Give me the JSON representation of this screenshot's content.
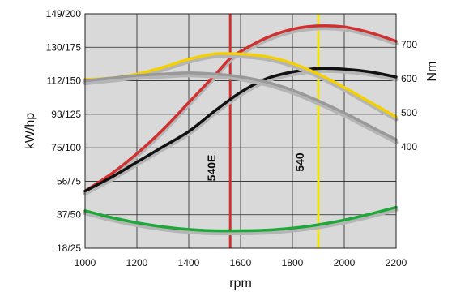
{
  "chart_data": {
    "type": "line",
    "xlabel": "rpm",
    "ylabel_left": "kW/hp",
    "ylabel_right": "Nm",
    "x_ticks": [
      1000,
      1200,
      1400,
      1600,
      1800,
      2000,
      2200
    ],
    "xlim": [
      1000,
      2200
    ],
    "left_ticks": [
      "149/200",
      "130/175",
      "112/150",
      "93/125",
      "75/100",
      "56/75",
      "37/50",
      "18/25"
    ],
    "right_ticks": [
      700,
      600,
      500,
      400
    ],
    "grid": true,
    "markers": [
      {
        "label": "540E",
        "x": 1560,
        "color": "#d03030"
      },
      {
        "label": "540",
        "x": 1900,
        "color": "#f5e600"
      }
    ],
    "series": [
      {
        "axis": "right",
        "unit": "Nm",
        "color": "#d03030",
        "x": [
          1000,
          1100,
          1200,
          1300,
          1400,
          1500,
          1560,
          1600,
          1700,
          1800,
          1900,
          2000,
          2100,
          2200
        ],
        "values": [
          270,
          320,
          380,
          450,
          530,
          610,
          660,
          680,
          720,
          745,
          755,
          752,
          735,
          710
        ]
      },
      {
        "axis": "right",
        "unit": "Nm",
        "color": "#111111",
        "x": [
          1000,
          1100,
          1200,
          1300,
          1400,
          1500,
          1600,
          1700,
          1800,
          1900,
          2000,
          2100,
          2200
        ],
        "values": [
          270,
          310,
          355,
          400,
          445,
          505,
          560,
          600,
          620,
          630,
          628,
          620,
          605
        ]
      },
      {
        "axis": "left",
        "unit": "hp",
        "color": "#f5d000",
        "x": [
          1000,
          1100,
          1200,
          1300,
          1400,
          1500,
          1600,
          1700,
          1800,
          1900,
          2000,
          2100,
          2200
        ],
        "values": [
          151,
          152,
          155,
          160,
          166,
          170,
          170,
          168,
          163,
          155,
          145,
          134,
          123
        ]
      },
      {
        "axis": "left",
        "unit": "hp",
        "color": "#999999",
        "x": [
          1000,
          1100,
          1200,
          1300,
          1400,
          1500,
          1600,
          1700,
          1800,
          1900,
          2000,
          2100,
          2200
        ],
        "values": [
          150,
          152,
          154,
          155,
          156,
          155,
          153,
          149,
          143,
          135,
          126,
          116,
          106
        ]
      },
      {
        "axis": "left",
        "unit": "hp",
        "color": "#1fa83a",
        "x": [
          1000,
          1100,
          1200,
          1300,
          1400,
          1500,
          1600,
          1700,
          1800,
          1900,
          2000,
          2100,
          2200
        ],
        "values": [
          53,
          48,
          44,
          41,
          39,
          38,
          38,
          38.5,
          40,
          42.5,
          46,
          50.5,
          55.5
        ]
      }
    ]
  }
}
